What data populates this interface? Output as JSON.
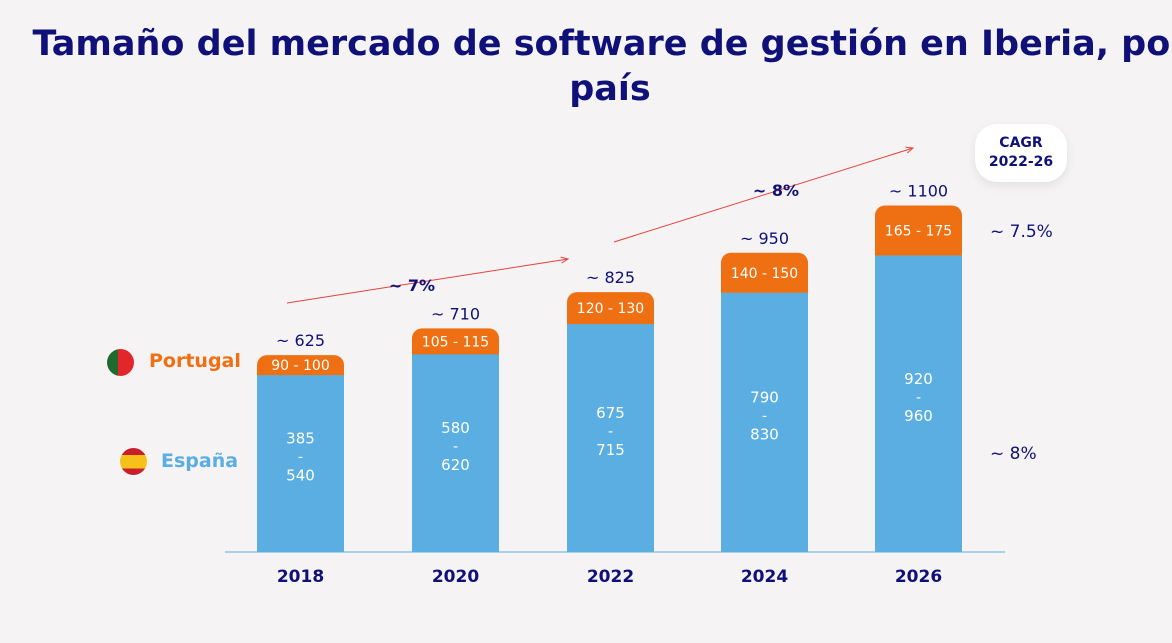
{
  "chart_data": {
    "type": "bar",
    "stacked": true,
    "title": "Tamaño del mercado de software de gestión en Iberia, por país",
    "categories": [
      "2018",
      "2020",
      "2022",
      "2024",
      "2026"
    ],
    "totals": [
      "~ 625",
      "~ 710",
      "~ 825",
      "~ 950",
      "~ 1100"
    ],
    "total_values": [
      625,
      710,
      825,
      950,
      1100
    ],
    "series": [
      {
        "name": "España",
        "color": "#5aaee2",
        "ranges": [
          [
            385,
            540
          ],
          [
            580,
            620
          ],
          [
            675,
            715
          ],
          [
            790,
            830
          ],
          [
            920,
            960
          ]
        ]
      },
      {
        "name": "Portugal",
        "color": "#ef7012",
        "ranges": [
          [
            90,
            100
          ],
          [
            105,
            115
          ],
          [
            120,
            130
          ],
          [
            140,
            150
          ],
          [
            165,
            175
          ]
        ]
      }
    ],
    "growth_annotations": [
      {
        "label": "~ 7%",
        "from": "2018",
        "to": "2022"
      },
      {
        "label": "~ 8%",
        "from": "2022",
        "to": "2026"
      }
    ],
    "cagr": {
      "label": "CAGR\n2022-26",
      "label_line1": "CAGR",
      "label_line2": "2022-26",
      "Portugal": "~  7.5%",
      "España": "~  8%"
    },
    "grid": false,
    "legend": "left"
  }
}
